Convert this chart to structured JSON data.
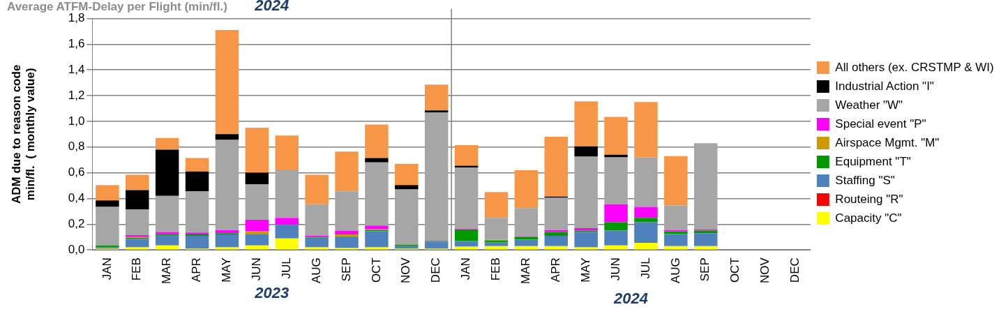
{
  "chart_data": {
    "type": "bar",
    "stacked": true,
    "title": "Average ATFM-Delay per Flight (min/fl.)",
    "ylabel": "ADM due to reason code\nmin/fl.  ( monthly value)",
    "categories": [
      "JAN",
      "FEB",
      "MAR",
      "APR",
      "MAY",
      "JUN",
      "JUL",
      "AUG",
      "SEP",
      "OCT",
      "NOV",
      "DEC",
      "JAN",
      "FEB",
      "MAR",
      "APR",
      "MAY",
      "JUN",
      "JUL",
      "AUG",
      "SEP",
      "OCT",
      "NOV",
      "DEC"
    ],
    "series": [
      {
        "name": "Capacity \"C\"",
        "color": "#ffff00",
        "values": [
          0.01,
          0.02,
          0.035,
          0.01,
          0.02,
          0.035,
          0.09,
          0.02,
          0.015,
          0.02,
          0.01,
          0.01,
          0.025,
          0.03,
          0.03,
          0.03,
          0.02,
          0.035,
          0.055,
          0.03,
          0.03,
          null,
          null,
          null
        ]
      },
      {
        "name": "Routeing \"R\"",
        "color": "#ff0000",
        "values": [
          0,
          0,
          0,
          0,
          0,
          0,
          0,
          0,
          0,
          0,
          0,
          0,
          0,
          0,
          0,
          0,
          0,
          0,
          0,
          0,
          0,
          null,
          null,
          null
        ]
      },
      {
        "name": "Staffing \"S\"",
        "color": "#4f81bd",
        "values": [
          0.01,
          0.065,
          0.08,
          0.1,
          0.1,
          0.09,
          0.105,
          0.075,
          0.085,
          0.125,
          0.02,
          0.055,
          0.045,
          0.03,
          0.05,
          0.08,
          0.12,
          0.115,
          0.16,
          0.095,
          0.1,
          null,
          null,
          null
        ]
      },
      {
        "name": "Equipment \"T\"",
        "color": "#009900",
        "values": [
          0.015,
          0.01,
          0.01,
          0.01,
          0.01,
          0,
          0,
          0.005,
          0.005,
          0.01,
          0.01,
          0.005,
          0.09,
          0.015,
          0.02,
          0.03,
          0.01,
          0.065,
          0.035,
          0.02,
          0.02,
          null,
          null,
          null
        ]
      },
      {
        "name": "Airspace Mgmt. \"M\"",
        "color": "#cc9900",
        "values": [
          0,
          0.005,
          0,
          0,
          0,
          0.02,
          0,
          0,
          0.015,
          0.005,
          0,
          0,
          0,
          0.005,
          0,
          0,
          0,
          0,
          0,
          0,
          0,
          null,
          null,
          null
        ]
      },
      {
        "name": "Special event \"P\"",
        "color": "#ff00ff",
        "values": [
          0,
          0.015,
          0.015,
          0.015,
          0.025,
          0.09,
          0.055,
          0.01,
          0.03,
          0.03,
          0,
          0,
          0.005,
          0,
          0.005,
          0.015,
          0.02,
          0.14,
          0.085,
          0.01,
          0.01,
          null,
          null,
          null
        ]
      },
      {
        "name": "Weather \"W\"",
        "color": "#a6a6a6",
        "values": [
          0.3,
          0.2,
          0.28,
          0.32,
          0.7,
          0.275,
          0.375,
          0.245,
          0.305,
          0.49,
          0.43,
          1.0,
          0.475,
          0.17,
          0.22,
          0.25,
          0.555,
          0.365,
          0.385,
          0.19,
          0.67,
          null,
          null,
          null
        ]
      },
      {
        "name": "Industrial Action \"I\"",
        "color": "#000000",
        "values": [
          0.05,
          0.15,
          0.36,
          0.155,
          0.045,
          0.09,
          0,
          0,
          0,
          0.035,
          0.035,
          0.015,
          0.015,
          0,
          0,
          0.01,
          0.08,
          0.02,
          0,
          0,
          0,
          null,
          null,
          null
        ]
      },
      {
        "name": "All others (ex. CRSTMP & WI)",
        "color": "#f79646",
        "values": [
          0.12,
          0.12,
          0.09,
          0.105,
          0.81,
          0.35,
          0.265,
          0.23,
          0.31,
          0.26,
          0.165,
          0.2,
          0.16,
          0.2,
          0.295,
          0.465,
          0.35,
          0.295,
          0.43,
          0.385,
          null,
          null,
          null,
          null
        ]
      }
    ],
    "ylim": [
      0,
      1.8
    ],
    "yticks": [
      {
        "value": 0,
        "label": "0,0"
      },
      {
        "value": 0.2,
        "label": "0,2"
      },
      {
        "value": 0.4,
        "label": "0,4"
      },
      {
        "value": 0.6,
        "label": "0,6"
      },
      {
        "value": 0.8,
        "label": "0,8"
      },
      {
        "value": 1,
        "label": "1,0"
      },
      {
        "value": 1.2,
        "label": "1,2"
      },
      {
        "value": 1.4,
        "label": "1,4"
      },
      {
        "value": 1.6,
        "label": "1,6"
      },
      {
        "value": 1.8,
        "label": "1,8"
      }
    ],
    "grid": "y",
    "legend": "right",
    "annotations": [
      "2023",
      "2024",
      "2024"
    ]
  }
}
